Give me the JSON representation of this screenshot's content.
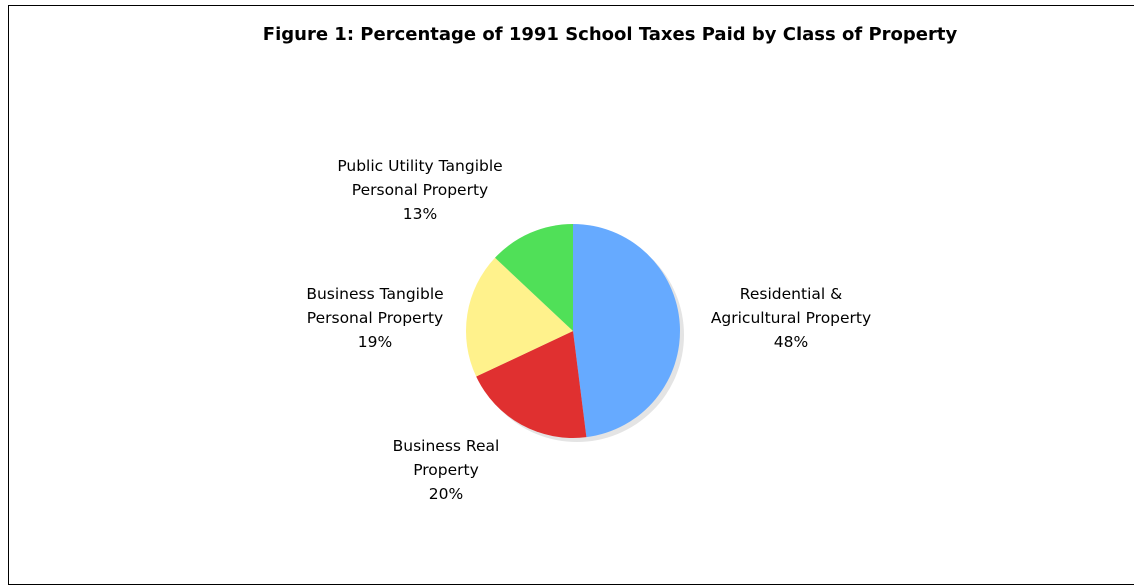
{
  "chart_data": {
    "type": "pie",
    "title": "Figure 1: Percentage of 1991 School Taxes Paid by Class of Property",
    "categories": [
      "Residential & Agricultural Property",
      "Business Real Property",
      "Business Tangible Personal Property",
      "Public Utility Tangible Personal Property"
    ],
    "values": [
      48,
      20,
      19,
      13
    ],
    "value_labels": [
      "48%",
      "20%",
      "19%",
      "13%"
    ],
    "colors": [
      "#66aaff",
      "#e03030",
      "#fff28c",
      "#50e058"
    ]
  }
}
